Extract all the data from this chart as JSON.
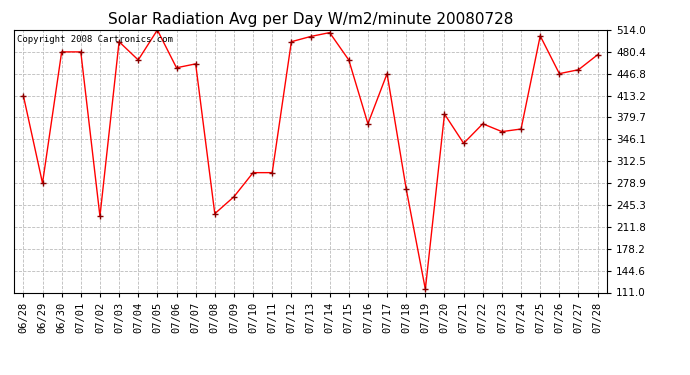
{
  "title": "Solar Radiation Avg per Day W/m2/minute 20080728",
  "copyright": "Copyright 2008 Cartronics.com",
  "dates": [
    "06/28",
    "06/29",
    "06/30",
    "07/01",
    "07/02",
    "07/03",
    "07/04",
    "07/05",
    "07/06",
    "07/07",
    "07/08",
    "07/09",
    "07/10",
    "07/11",
    "07/12",
    "07/13",
    "07/14",
    "07/15",
    "07/16",
    "07/17",
    "07/18",
    "07/19",
    "07/20",
    "07/21",
    "07/22",
    "07/23",
    "07/24",
    "07/25",
    "07/26",
    "07/27",
    "07/28"
  ],
  "values": [
    413.2,
    278.9,
    480.4,
    480.4,
    228.0,
    496.0,
    468.0,
    514.0,
    456.0,
    462.0,
    232.0,
    258.0,
    295.0,
    295.0,
    496.0,
    504.0,
    510.0,
    468.0,
    370.0,
    447.0,
    270.0,
    116.0,
    385.0,
    340.0,
    370.0,
    358.0,
    362.0,
    505.0,
    447.0,
    453.0,
    476.0
  ],
  "line_color": "#ff0000",
  "marker": "+",
  "marker_color": "#880000",
  "bg_color": "#ffffff",
  "grid_color": "#bbbbbb",
  "ylim_min": 111.0,
  "ylim_max": 514.0,
  "yticks": [
    111.0,
    144.6,
    178.2,
    211.8,
    245.3,
    278.9,
    312.5,
    346.1,
    379.7,
    413.2,
    446.8,
    480.4,
    514.0
  ],
  "title_fontsize": 11,
  "tick_fontsize": 7.5,
  "copyright_fontsize": 6.5
}
